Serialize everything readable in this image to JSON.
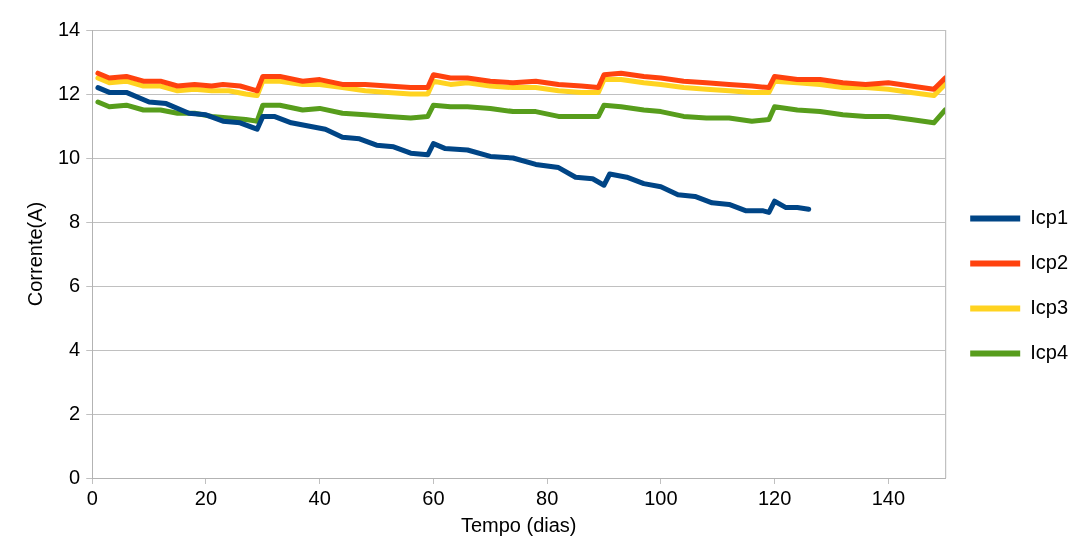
{
  "chart_data": {
    "type": "line",
    "xlabel": "Tempo (dias)",
    "ylabel": "Corrente(A)",
    "xlim": [
      0,
      150
    ],
    "xticks": [
      0,
      20,
      40,
      60,
      80,
      100,
      120,
      140
    ],
    "ylim": [
      0,
      14
    ],
    "yticks": [
      0,
      2,
      4,
      6,
      8,
      10,
      12,
      14
    ],
    "grid": "y",
    "legend": "right",
    "marker": "none",
    "line_style": "solid",
    "series": [
      {
        "name": "Icp1",
        "color": "#004586",
        "x": [
          1,
          3,
          6,
          10,
          13,
          17,
          20,
          23,
          26,
          29,
          30,
          32,
          35,
          38,
          41,
          44,
          47,
          50,
          53,
          56,
          59,
          60,
          62,
          66,
          70,
          74,
          78,
          82,
          85,
          88,
          90,
          91,
          94,
          97,
          100,
          103,
          106,
          109,
          112,
          115,
          118,
          119,
          120,
          122,
          124,
          126
        ],
        "values": [
          12.2,
          12.05,
          12.05,
          11.75,
          11.7,
          11.4,
          11.35,
          11.15,
          11.1,
          10.9,
          11.3,
          11.3,
          11.1,
          11.0,
          10.9,
          10.65,
          10.6,
          10.4,
          10.35,
          10.15,
          10.1,
          10.45,
          10.3,
          10.25,
          10.05,
          10.0,
          9.8,
          9.7,
          9.4,
          9.35,
          9.15,
          9.5,
          9.4,
          9.2,
          9.1,
          8.85,
          8.8,
          8.6,
          8.55,
          8.35,
          8.35,
          8.3,
          8.65,
          8.45,
          8.45,
          8.4
        ]
      },
      {
        "name": "Icp2",
        "color": "#ff420e",
        "x": [
          1,
          3,
          6,
          9,
          12,
          15,
          18,
          21,
          23,
          26,
          29,
          30,
          33,
          37,
          40,
          44,
          48,
          52,
          56,
          59,
          60,
          63,
          66,
          70,
          74,
          78,
          82,
          86,
          89,
          90,
          93,
          97,
          100,
          104,
          108,
          112,
          116,
          119,
          120,
          124,
          128,
          132,
          136,
          140,
          144,
          148,
          150
        ],
        "values": [
          12.65,
          12.5,
          12.55,
          12.4,
          12.4,
          12.25,
          12.3,
          12.25,
          12.3,
          12.25,
          12.1,
          12.55,
          12.55,
          12.4,
          12.45,
          12.3,
          12.3,
          12.25,
          12.2,
          12.2,
          12.6,
          12.5,
          12.5,
          12.4,
          12.35,
          12.4,
          12.3,
          12.25,
          12.2,
          12.6,
          12.65,
          12.55,
          12.5,
          12.4,
          12.35,
          12.3,
          12.25,
          12.2,
          12.55,
          12.45,
          12.45,
          12.35,
          12.3,
          12.35,
          12.25,
          12.15,
          12.5
        ]
      },
      {
        "name": "Icp3",
        "color": "#ffd320",
        "x": [
          1,
          3,
          6,
          9,
          12,
          15,
          18,
          21,
          24,
          27,
          29,
          30,
          33,
          37,
          40,
          44,
          48,
          52,
          56,
          59,
          60,
          63,
          66,
          70,
          74,
          78,
          82,
          86,
          89,
          90,
          93,
          97,
          100,
          104,
          108,
          112,
          116,
          119,
          120,
          124,
          128,
          132,
          136,
          140,
          144,
          148,
          150
        ],
        "values": [
          12.5,
          12.35,
          12.4,
          12.25,
          12.25,
          12.1,
          12.15,
          12.1,
          12.1,
          12.0,
          11.95,
          12.4,
          12.4,
          12.3,
          12.3,
          12.2,
          12.1,
          12.05,
          12.0,
          12.0,
          12.4,
          12.3,
          12.35,
          12.25,
          12.2,
          12.2,
          12.1,
          12.05,
          12.05,
          12.45,
          12.45,
          12.35,
          12.3,
          12.2,
          12.15,
          12.1,
          12.05,
          12.05,
          12.4,
          12.35,
          12.3,
          12.2,
          12.2,
          12.15,
          12.05,
          11.95,
          12.3
        ]
      },
      {
        "name": "Icp4",
        "color": "#579d1c",
        "x": [
          1,
          3,
          6,
          9,
          12,
          15,
          18,
          21,
          24,
          27,
          29,
          30,
          33,
          37,
          40,
          44,
          48,
          52,
          56,
          59,
          60,
          63,
          66,
          70,
          74,
          78,
          82,
          86,
          89,
          90,
          93,
          97,
          100,
          104,
          108,
          112,
          116,
          119,
          120,
          124,
          128,
          132,
          136,
          140,
          144,
          148,
          150
        ],
        "values": [
          11.75,
          11.6,
          11.65,
          11.5,
          11.5,
          11.4,
          11.4,
          11.3,
          11.25,
          11.2,
          11.15,
          11.65,
          11.65,
          11.5,
          11.55,
          11.4,
          11.35,
          11.3,
          11.25,
          11.3,
          11.65,
          11.6,
          11.6,
          11.55,
          11.45,
          11.45,
          11.3,
          11.3,
          11.3,
          11.65,
          11.6,
          11.5,
          11.45,
          11.3,
          11.25,
          11.25,
          11.15,
          11.2,
          11.6,
          11.5,
          11.45,
          11.35,
          11.3,
          11.3,
          11.2,
          11.1,
          11.5
        ]
      }
    ]
  }
}
